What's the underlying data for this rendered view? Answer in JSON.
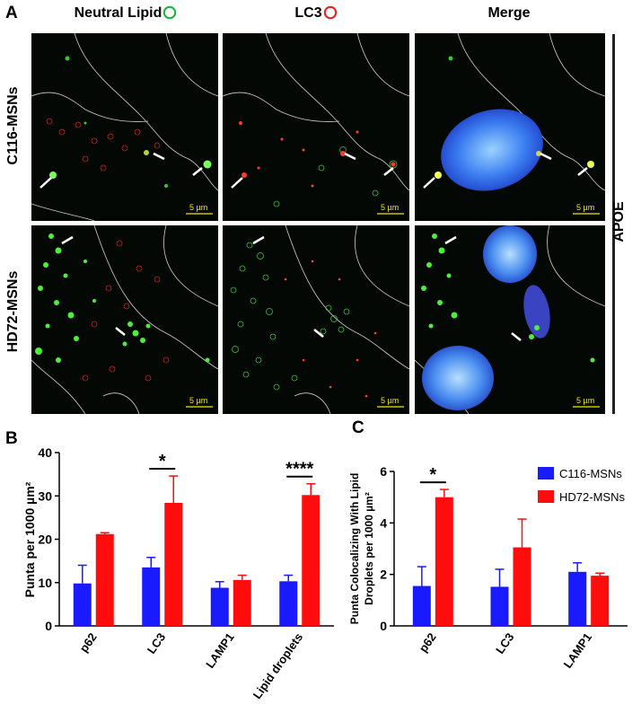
{
  "panel_a": {
    "label": "A",
    "columns": [
      {
        "title": "Neutral Lipid",
        "marker_color": "#19b33a"
      },
      {
        "title": "LC3",
        "marker_color": "#e3221b"
      },
      {
        "title": "Merge"
      }
    ],
    "rows": [
      "C116-MSNs",
      "HD72-MSNs"
    ],
    "side_label": "APOE",
    "scale_bar": "5 µm"
  },
  "panel_b": {
    "label": "B",
    "chart_data": {
      "type": "bar",
      "categories": [
        "p62",
        "LC3",
        "LAMP1",
        "Lipid droplets"
      ],
      "series": [
        {
          "name": "C116-MSNs",
          "color": "#1a1aff",
          "values": [
            9.8,
            13.5,
            8.8,
            10.3
          ],
          "errors": [
            4.2,
            2.3,
            1.4,
            1.4
          ]
        },
        {
          "name": "HD72-MSNs",
          "color": "#ff0d0d",
          "values": [
            21.2,
            28.4,
            10.6,
            30.2
          ],
          "errors": [
            0.3,
            6.2,
            1.1,
            2.6
          ]
        }
      ],
      "ylabel": "Punta per 1000 µm²",
      "ylim": [
        0,
        40
      ],
      "yticks": [
        0,
        10,
        20,
        30,
        40
      ],
      "significance": [
        {
          "category": "LC3",
          "text": "*"
        },
        {
          "category": "Lipid droplets",
          "text": "****"
        }
      ]
    }
  },
  "panel_c": {
    "label": "C",
    "chart_data": {
      "type": "bar",
      "categories": [
        "p62",
        "LC3",
        "LAMP1"
      ],
      "series": [
        {
          "name": "C116-MSNs",
          "color": "#1a1aff",
          "values": [
            1.55,
            1.52,
            2.1
          ],
          "errors": [
            0.75,
            0.68,
            0.35
          ]
        },
        {
          "name": "HD72-MSNs",
          "color": "#ff0d0d",
          "values": [
            5.0,
            3.05,
            1.95
          ],
          "errors": [
            0.3,
            1.1,
            0.1
          ]
        }
      ],
      "ylabel_lines": [
        "Punta Colocalizing With Lipid",
        "Droplets per 1000 µm²"
      ],
      "ylim": [
        0,
        6
      ],
      "yticks": [
        0,
        2,
        4,
        6
      ],
      "legend": "top-right",
      "significance": [
        {
          "category": "p62",
          "text": "*"
        }
      ]
    }
  }
}
